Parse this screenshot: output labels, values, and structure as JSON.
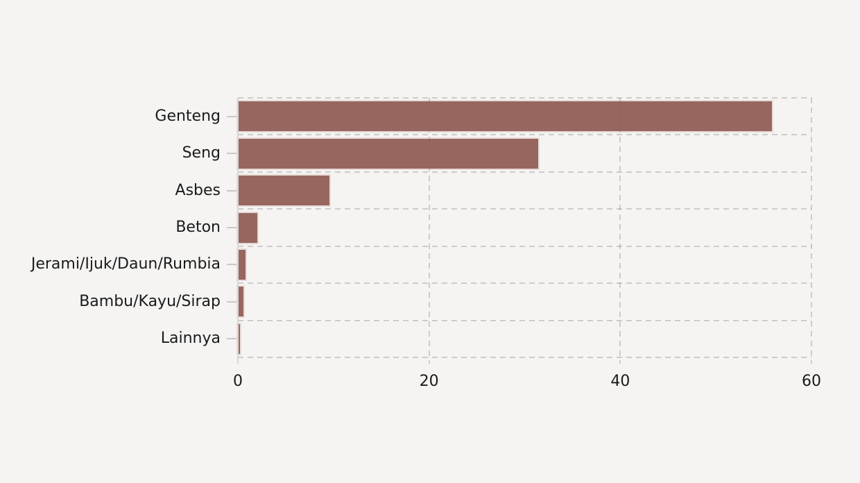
{
  "chart_data": {
    "type": "bar",
    "orientation": "horizontal",
    "title": "",
    "xlabel": "",
    "ylabel": "",
    "categories": [
      "Genteng",
      "Seng",
      "Asbes",
      "Beton",
      "Jerami/Ijuk/Daun/Rumbia",
      "Bambu/Kayu/Sirap",
      "Lainnya"
    ],
    "values": [
      55.9,
      31.4,
      9.6,
      2.0,
      0.8,
      0.55,
      0.2
    ],
    "xlim": [
      0,
      60
    ],
    "x_ticks": [
      0,
      20,
      40,
      60
    ],
    "grid": "dashed-both-axes",
    "legend": "none",
    "colors": {
      "background": "#f5f4f3",
      "bar_fill": "#97675f",
      "bar_edge": "#e8dbd6",
      "grid_line": "rgba(100,100,100,0.28)",
      "zero_axis_line": "#d8d7d5",
      "tick_mark": "#cac8c6",
      "text": "#1a1a1a"
    }
  }
}
